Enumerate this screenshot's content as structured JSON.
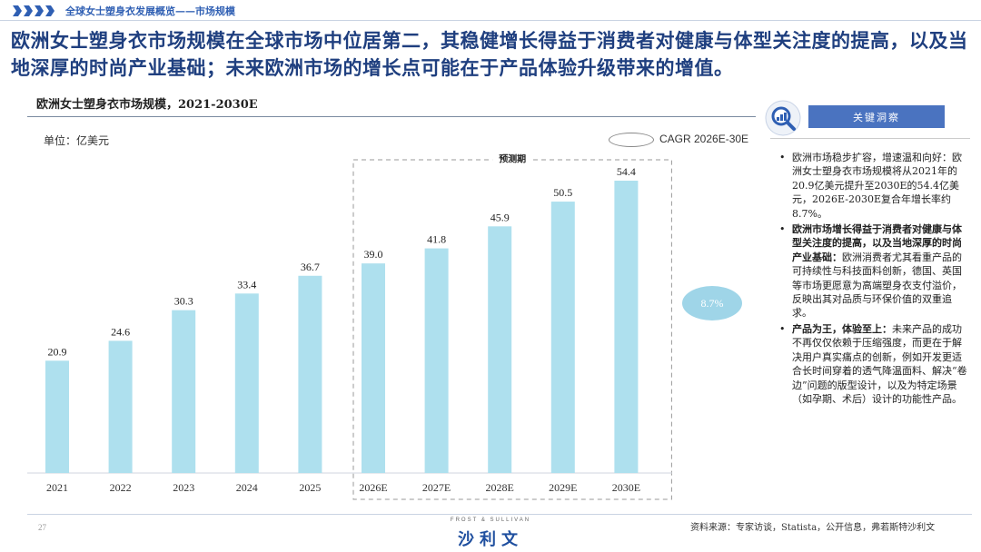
{
  "header": {
    "breadcrumb": "全球女士塑身衣发展概览——市场规模"
  },
  "headline": "欧洲女士塑身衣市场规模在全球市场中位居第二，其稳健增长得益于消费者对健康与体型关注度的提高，以及当地深厚的时尚产业基础；未来欧洲市场的增长点可能在于产品体验升级带来的增值。",
  "chart": {
    "title": "欧洲女士塑身衣市场规模，2021-2030E",
    "unit": "单位：亿美元",
    "cagr_legend": "CAGR 2026E-30E",
    "cagr_value": "8.7%",
    "forecast_label": "预测期"
  },
  "chart_data": {
    "type": "bar",
    "categories": [
      "2021",
      "2022",
      "2023",
      "2024",
      "2025",
      "2026E",
      "2027E",
      "2028E",
      "2029E",
      "2030E"
    ],
    "values": [
      20.9,
      24.6,
      30.3,
      33.4,
      36.7,
      39.0,
      41.8,
      45.9,
      50.5,
      54.4
    ],
    "value_labels": [
      "20.9",
      "24.6",
      "30.3",
      "33.4",
      "36.7",
      "39.0",
      "41.8",
      "45.9",
      "50.5",
      "54.4"
    ],
    "forecast_start_index": 5,
    "bar_color": "#aee0ee",
    "title": "欧洲女士塑身衣市场规模，2021-2030E",
    "ylabel": "单位：亿美元",
    "ylim": [
      0,
      60
    ]
  },
  "insights": {
    "title": "关键洞察",
    "items": [
      {
        "bullet": "•",
        "strong": "",
        "text": "欧洲市场稳步扩容，增速温和向好：欧洲女士塑身衣市场规模将从2021年的20.9亿美元提升至2030E的54.4亿美元，2026E-2030E复合年增长率约8.7%。"
      },
      {
        "bullet": "•",
        "strong": "欧洲市场增长得益于消费者对健康与体型关注度的提高，以及当地深厚的时尚产业基础：",
        "text": "欧洲消费者尤其看重产品的可持续性与科技面料创新，德国、英国等市场更愿意为高端塑身衣支付溢价，反映出其对品质与环保价值的双重追求。"
      },
      {
        "bullet": "•",
        "strong": "产品为王，体验至上：",
        "text": "未来产品的成功不再仅仅依赖于压缩强度，而更在于解决用户真实痛点的创新，例如开发更适合长时间穿着的透气降温面料、解决“卷边”问题的版型设计，以及为特定场景（如孕期、术后）设计的功能性产品。"
      }
    ]
  },
  "footer": {
    "page_number": "27",
    "logo_small": "FROST & SULLIVAN",
    "logo_main": "沙利文",
    "source": "资料来源：专家访谈，Statista，公开信息，弗若斯特沙利文"
  }
}
